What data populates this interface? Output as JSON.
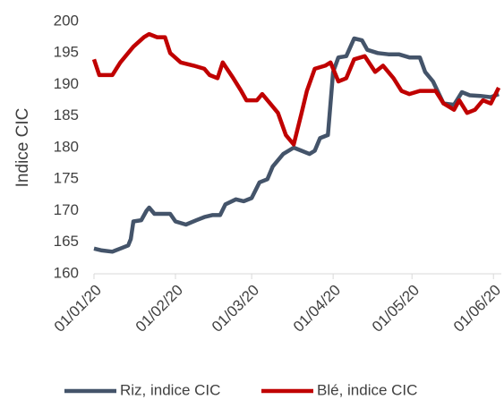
{
  "chart_data": {
    "type": "line",
    "ylabel": "Indice CIC",
    "xlim": [
      "2020-01-01",
      "2020-06-04"
    ],
    "xticks": [
      {
        "value": "2020-01-01",
        "label": "01/01/20"
      },
      {
        "value": "2020-02-01",
        "label": "01/02/20"
      },
      {
        "value": "2020-03-01",
        "label": "01/03/20"
      },
      {
        "value": "2020-04-01",
        "label": "01/04/20"
      },
      {
        "value": "2020-05-01",
        "label": "01/05/20"
      },
      {
        "value": "2020-06-01",
        "label": "01/06/20"
      }
    ],
    "ylim": [
      160,
      200
    ],
    "yticks": [
      160,
      165,
      170,
      175,
      180,
      185,
      190,
      195,
      200
    ],
    "grid": false,
    "legend": "bottom",
    "series": [
      {
        "name": "Riz, indice CIC",
        "color": "#44546a",
        "x": [
          "2020-01-01",
          "2020-01-04",
          "2020-01-08",
          "2020-01-11",
          "2020-01-14",
          "2020-01-15",
          "2020-01-16",
          "2020-01-19",
          "2020-01-21",
          "2020-01-22",
          "2020-01-24",
          "2020-01-30",
          "2020-02-01",
          "2020-02-05",
          "2020-02-09",
          "2020-02-12",
          "2020-02-15",
          "2020-02-18",
          "2020-02-20",
          "2020-02-24",
          "2020-02-27",
          "2020-03-01",
          "2020-03-04",
          "2020-03-07",
          "2020-03-09",
          "2020-03-13",
          "2020-03-17",
          "2020-03-20",
          "2020-03-23",
          "2020-03-25",
          "2020-03-27",
          "2020-03-30",
          "2020-04-01",
          "2020-04-03",
          "2020-04-06",
          "2020-04-09",
          "2020-04-12",
          "2020-04-14",
          "2020-04-18",
          "2020-04-22",
          "2020-04-26",
          "2020-04-30",
          "2020-05-04",
          "2020-05-06",
          "2020-05-09",
          "2020-05-13",
          "2020-05-17",
          "2020-05-20",
          "2020-05-23",
          "2020-05-27",
          "2020-05-31",
          "2020-06-03"
        ],
        "values": [
          164,
          163.7,
          163.5,
          164,
          164.5,
          165.5,
          168.3,
          168.5,
          170,
          170.5,
          169.5,
          169.5,
          168.3,
          167.8,
          168.5,
          169,
          169.3,
          169.3,
          171,
          171.8,
          171.5,
          172,
          174.5,
          175,
          177,
          179,
          180,
          179.5,
          179,
          179.5,
          181.5,
          182,
          192,
          194.3,
          194.5,
          197.3,
          197,
          195.5,
          195,
          194.8,
          194.8,
          194.3,
          194.3,
          192,
          190.5,
          187,
          186.8,
          188.8,
          188.3,
          188.2,
          188,
          188.5
        ]
      },
      {
        "name": "Blé, indice CIC",
        "color": "#c00000",
        "x": [
          "2020-01-01",
          "2020-01-03",
          "2020-01-08",
          "2020-01-11",
          "2020-01-16",
          "2020-01-20",
          "2020-01-22",
          "2020-01-25",
          "2020-01-28",
          "2020-01-30",
          "2020-02-03",
          "2020-02-08",
          "2020-02-12",
          "2020-02-14",
          "2020-02-17",
          "2020-02-19",
          "2020-02-23",
          "2020-02-26",
          "2020-02-28",
          "2020-03-03",
          "2020-03-05",
          "2020-03-08",
          "2020-03-11",
          "2020-03-14",
          "2020-03-17",
          "2020-03-20",
          "2020-03-22",
          "2020-03-25",
          "2020-03-29",
          "2020-03-31",
          "2020-04-03",
          "2020-04-06",
          "2020-04-09",
          "2020-04-13",
          "2020-04-17",
          "2020-04-20",
          "2020-04-24",
          "2020-04-27",
          "2020-04-30",
          "2020-05-04",
          "2020-05-10",
          "2020-05-13",
          "2020-05-17",
          "2020-05-19",
          "2020-05-22",
          "2020-05-25",
          "2020-05-28",
          "2020-05-31",
          "2020-06-03"
        ],
        "values": [
          194,
          191.5,
          191.5,
          193.5,
          196,
          197.5,
          198,
          197.5,
          197.5,
          195,
          193.5,
          193,
          192.5,
          191.5,
          191,
          193.5,
          191,
          189,
          187.5,
          187.5,
          188.5,
          187,
          185.5,
          182,
          180.5,
          185.5,
          189,
          192.5,
          193,
          193.5,
          190.5,
          191,
          194,
          194.5,
          192,
          193,
          191,
          189,
          188.5,
          189,
          189,
          187,
          186,
          187.5,
          185.5,
          186,
          187.5,
          187,
          189.5
        ]
      }
    ]
  }
}
